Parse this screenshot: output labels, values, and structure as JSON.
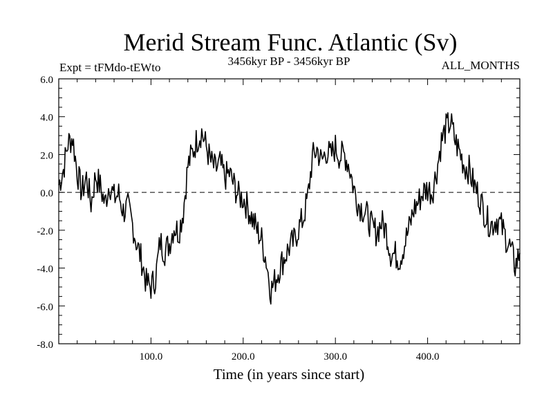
{
  "chart_data": {
    "type": "line",
    "title": "Merid Stream Func. Atlantic (Sv)",
    "subtitle_left": "Expt = tFMdo-tEWto",
    "subtitle_center": "3456kyr BP - 3456kyr BP",
    "subtitle_right": "ALL_MONTHS",
    "xlabel": "Time (in years since start)",
    "ylabel": "",
    "xlim": [
      0,
      500
    ],
    "ylim": [
      -8.0,
      6.0
    ],
    "x_ticks": [
      {
        "value": 100,
        "label": "100.0"
      },
      {
        "value": 200,
        "label": "200.0"
      },
      {
        "value": 300,
        "label": "300.0"
      },
      {
        "value": 400,
        "label": "400.0"
      }
    ],
    "y_ticks": [
      {
        "value": 6,
        "label": "6.0"
      },
      {
        "value": 4,
        "label": "4.0"
      },
      {
        "value": 2,
        "label": "2.0"
      },
      {
        "value": 0,
        "label": "0.0"
      },
      {
        "value": -2,
        "label": "-2.0"
      },
      {
        "value": -4,
        "label": "-4.0"
      },
      {
        "value": -6,
        "label": "-6.0"
      },
      {
        "value": -8,
        "label": "-8.0"
      }
    ],
    "reference_line": 0,
    "grid": false,
    "series": [
      {
        "name": "Merid Stream Func.",
        "x": [
          0,
          5,
          10,
          15,
          20,
          25,
          30,
          35,
          40,
          45,
          50,
          55,
          60,
          65,
          70,
          75,
          80,
          85,
          90,
          95,
          100,
          105,
          110,
          115,
          120,
          125,
          130,
          135,
          140,
          145,
          150,
          155,
          160,
          165,
          170,
          175,
          180,
          185,
          190,
          195,
          200,
          205,
          210,
          215,
          220,
          225,
          230,
          235,
          240,
          245,
          250,
          255,
          260,
          265,
          270,
          275,
          280,
          285,
          290,
          295,
          300,
          305,
          310,
          315,
          320,
          325,
          330,
          335,
          340,
          345,
          350,
          355,
          360,
          365,
          370,
          375,
          380,
          385,
          390,
          395,
          400,
          405,
          410,
          415,
          420,
          425,
          430,
          435,
          440,
          445,
          450,
          455,
          460,
          465,
          470,
          475,
          480,
          485,
          490,
          495,
          500
        ],
        "y": [
          0.4,
          1.2,
          2.6,
          2.9,
          1.1,
          0.0,
          0.8,
          -0.6,
          0.9,
          0.3,
          -0.6,
          0.5,
          -0.3,
          -0.1,
          -1.0,
          -0.8,
          -1.7,
          -2.8,
          -3.6,
          -4.8,
          -5.0,
          -4.5,
          -2.6,
          -3.1,
          -2.7,
          -1.8,
          -2.1,
          -1.0,
          1.4,
          2.1,
          2.8,
          3.2,
          2.4,
          1.6,
          1.2,
          1.5,
          0.8,
          1.0,
          0.4,
          -0.2,
          -0.3,
          -0.8,
          -1.4,
          -2.0,
          -2.5,
          -3.6,
          -5.2,
          -4.6,
          -3.9,
          -3.4,
          -2.9,
          -2.6,
          -1.9,
          -1.4,
          -0.3,
          1.8,
          2.3,
          1.6,
          2.2,
          1.9,
          2.4,
          1.9,
          2.0,
          1.4,
          0.2,
          -0.6,
          -0.9,
          -1.3,
          -1.9,
          -2.1,
          -1.6,
          -2.0,
          -3.2,
          -3.3,
          -3.5,
          -2.7,
          -1.9,
          -0.9,
          -0.5,
          0.0,
          0.2,
          0.0,
          1.2,
          2.7,
          3.4,
          3.7,
          2.7,
          2.1,
          1.4,
          1.2,
          0.4,
          -0.1,
          -0.8,
          -1.5,
          -1.7,
          -1.4,
          -1.8,
          -2.4,
          -3.0,
          -3.9,
          -3.2
        ]
      }
    ]
  }
}
